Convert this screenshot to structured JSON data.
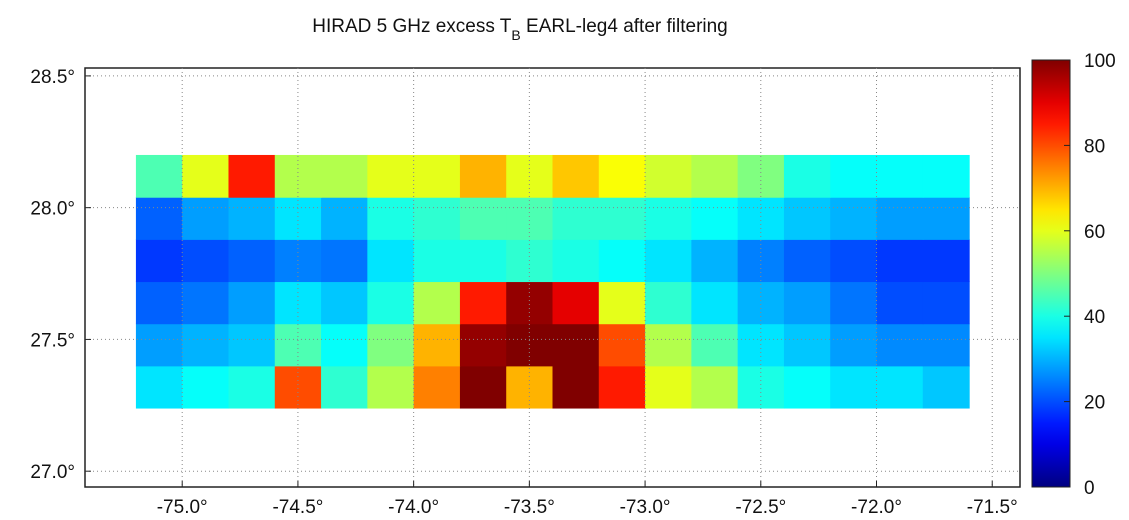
{
  "chart_data": {
    "type": "heatmap",
    "title": [
      "HIRAD 5 GHz excess T",
      "B",
      " EARL-leg4 after filtering"
    ],
    "x": [
      -75.1,
      -74.9,
      -74.7,
      -74.5,
      -74.3,
      -74.1,
      -73.9,
      -73.7,
      -73.5,
      -73.3,
      -73.1,
      -72.9,
      -72.7,
      -72.5,
      -72.3,
      -72.1,
      -71.9,
      -71.7
    ],
    "y": [
      27.32,
      27.48,
      27.64,
      27.8,
      27.96,
      28.12
    ],
    "values": [
      [
        35,
        38,
        40,
        80,
        42,
        55,
        75,
        100,
        70,
        100,
        85,
        60,
        55,
        40,
        38,
        35,
        35,
        32
      ],
      [
        28,
        30,
        32,
        45,
        38,
        50,
        70,
        98,
        100,
        100,
        80,
        55,
        45,
        35,
        32,
        28,
        26,
        26
      ],
      [
        22,
        24,
        28,
        35,
        32,
        40,
        55,
        85,
        98,
        90,
        60,
        42,
        35,
        30,
        28,
        24,
        20,
        20
      ],
      [
        18,
        20,
        22,
        25,
        24,
        35,
        40,
        40,
        42,
        40,
        38,
        35,
        30,
        25,
        22,
        20,
        18,
        18
      ],
      [
        22,
        28,
        30,
        35,
        30,
        40,
        42,
        45,
        45,
        42,
        42,
        40,
        38,
        35,
        32,
        30,
        28,
        28
      ],
      [
        45,
        60,
        85,
        55,
        55,
        60,
        60,
        70,
        60,
        68,
        62,
        58,
        55,
        50,
        40,
        38,
        38,
        38
      ]
    ],
    "xlim": [
      -75.42,
      -71.38
    ],
    "ylim": [
      26.94,
      28.53
    ],
    "xticks": [
      {
        "value": -75,
        "label": "-75.0°"
      },
      {
        "value": -74.5,
        "label": "-74.5°"
      },
      {
        "value": -74,
        "label": "-74.0°"
      },
      {
        "value": -73.5,
        "label": "-73.5°"
      },
      {
        "value": -73,
        "label": "-73.0°"
      },
      {
        "value": -72.5,
        "label": "-72.5°"
      },
      {
        "value": -72,
        "label": "-72.0°"
      },
      {
        "value": -71.5,
        "label": "-71.5°"
      }
    ],
    "yticks": [
      {
        "value": 27,
        "label": "27.0°"
      },
      {
        "value": 27.5,
        "label": "27.5°"
      },
      {
        "value": 28,
        "label": "28.0°"
      },
      {
        "value": 28.5,
        "label": "28.5°"
      }
    ],
    "zlim": [
      0,
      100
    ],
    "zticks": [
      0,
      20,
      40,
      60,
      80,
      100
    ],
    "colormap": "jet",
    "grid": true
  }
}
